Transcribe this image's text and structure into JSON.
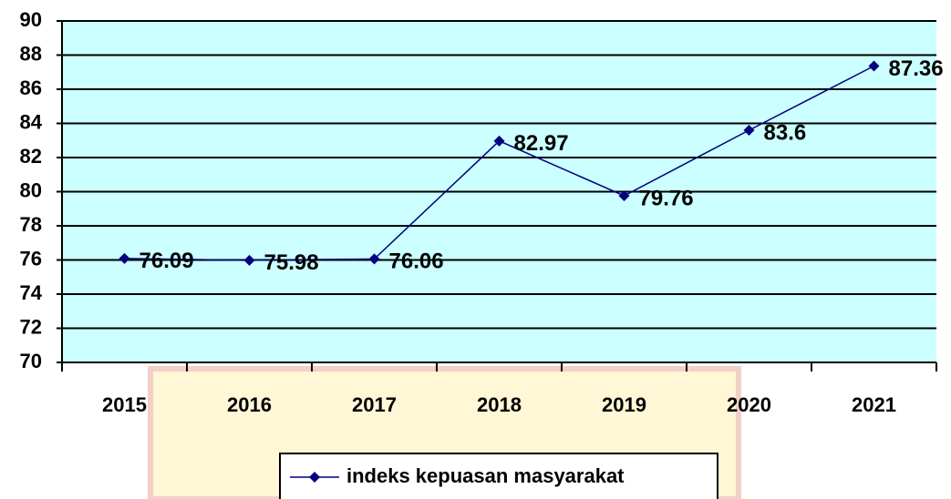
{
  "chart_data": {
    "type": "line",
    "categories": [
      "2015",
      "2016",
      "2017",
      "2018",
      "2019",
      "2020",
      "2021"
    ],
    "series": [
      {
        "name": "indeks kepuasan masyarakat",
        "color": "#000080",
        "values": [
          76.09,
          75.98,
          76.06,
          82.97,
          79.76,
          83.6,
          87.36
        ]
      }
    ],
    "ylim": [
      70,
      90
    ],
    "yticks": [
      70,
      72,
      74,
      76,
      78,
      80,
      82,
      84,
      86,
      88,
      90
    ],
    "grid": true,
    "plot_background": "#ccffff",
    "legend": "bottom"
  }
}
